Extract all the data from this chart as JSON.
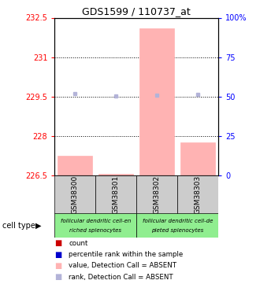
{
  "title": "GDS1599 / 110737_at",
  "samples": [
    "GSM38300",
    "GSM38301",
    "GSM38302",
    "GSM38303"
  ],
  "ylim_left": [
    226.5,
    232.5
  ],
  "ylim_right": [
    0,
    100
  ],
  "yticks_left": [
    226.5,
    228.0,
    229.5,
    231.0,
    232.5
  ],
  "yticks_right": [
    0,
    25,
    50,
    75,
    100
  ],
  "ytick_labels_left": [
    "226.5",
    "228",
    "229.5",
    "231",
    "232.5"
  ],
  "ytick_labels_right": [
    "0",
    "25",
    "50",
    "75",
    "100%"
  ],
  "hlines": [
    228.0,
    229.5,
    231.0
  ],
  "bar_values": [
    227.25,
    226.57,
    232.1,
    227.75
  ],
  "bar_base": 226.5,
  "rank_values": [
    52.0,
    50.5,
    51.0,
    51.5
  ],
  "bar_color": "#ffb3b3",
  "rank_color": "#b3b3d8",
  "cell_type_groups": [
    {
      "label_top": "follicular dendritic cell-en",
      "label_bot": "riched splenocytes",
      "start": 0,
      "end": 2,
      "color": "#90ee90"
    },
    {
      "label_top": "follicular dendritic cell-de",
      "label_bot": "pleted splenocytes",
      "start": 2,
      "end": 4,
      "color": "#90ee90"
    }
  ],
  "legend_items": [
    {
      "color": "#cc0000",
      "label": "count"
    },
    {
      "color": "#0000cc",
      "label": "percentile rank within the sample"
    },
    {
      "color": "#ffb3b3",
      "label": "value, Detection Call = ABSENT"
    },
    {
      "color": "#b3b3d8",
      "label": "rank, Detection Call = ABSENT"
    }
  ],
  "cell_type_label": "cell type",
  "bar_width": 0.85
}
